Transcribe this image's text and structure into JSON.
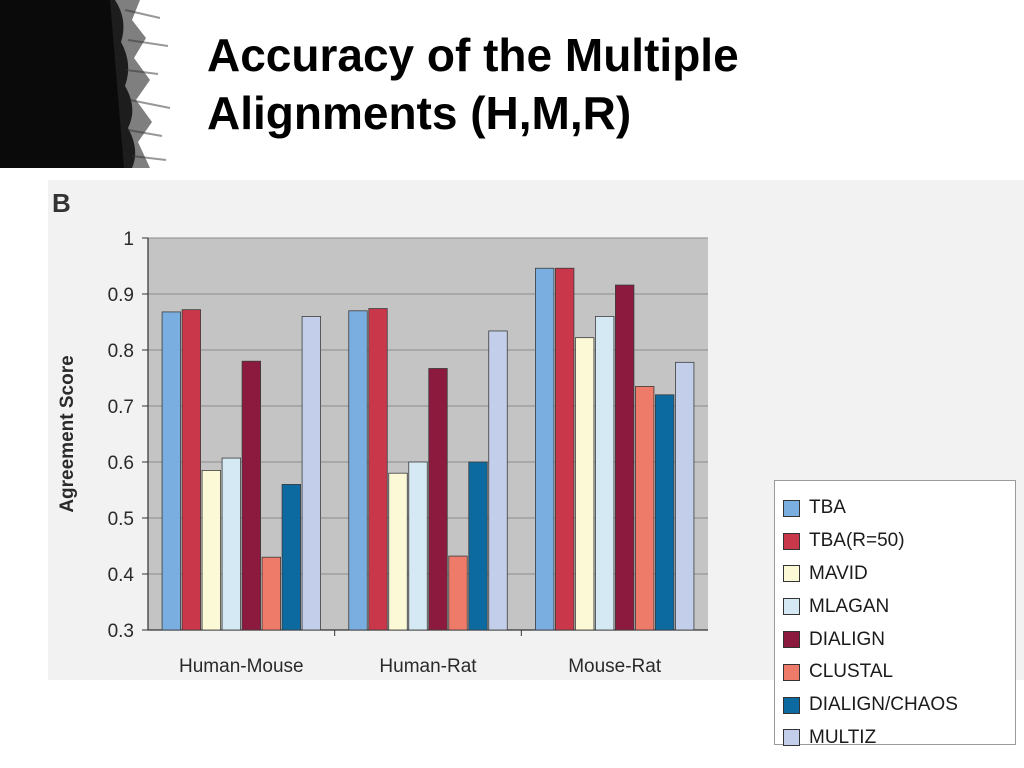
{
  "slide": {
    "title_line1": "Accuracy of the Multiple",
    "title_line2": "Alignments (H,M,R)"
  },
  "chart_data": {
    "type": "bar",
    "panel_label": "B",
    "title": "",
    "xlabel": "",
    "ylabel": "Agreement Score",
    "ylim": [
      0.3,
      1.0
    ],
    "yticks": [
      0.3,
      0.4,
      0.5,
      0.6,
      0.7,
      0.8,
      0.9,
      1
    ],
    "ytick_labels": [
      "0.3",
      "0.4",
      "0.5",
      "0.6",
      "0.7",
      "0.8",
      "0.9",
      "1"
    ],
    "grid": true,
    "legend_position": "right",
    "categories": [
      "Human-Mouse",
      "Human-Rat",
      "Mouse-Rat"
    ],
    "series": [
      {
        "name": "TBA",
        "color": "#7aaee0",
        "values": [
          0.868,
          0.87,
          0.946
        ]
      },
      {
        "name": "TBA(R=50)",
        "color": "#c8384a",
        "values": [
          0.872,
          0.874,
          0.946
        ]
      },
      {
        "name": "MAVID",
        "color": "#fbf9d6",
        "values": [
          0.585,
          0.58,
          0.822
        ]
      },
      {
        "name": "MLAGAN",
        "color": "#d4e9f4",
        "values": [
          0.607,
          0.6,
          0.86
        ]
      },
      {
        "name": "DIALIGN",
        "color": "#8b1a3e",
        "values": [
          0.78,
          0.767,
          0.916
        ]
      },
      {
        "name": "CLUSTAL",
        "color": "#ee7a6a",
        "values": [
          0.43,
          0.432,
          0.735
        ]
      },
      {
        "name": "DIALIGN/CHAOS",
        "color": "#0c6aa0",
        "values": [
          0.56,
          0.6,
          0.72
        ]
      },
      {
        "name": "MULTIZ",
        "color": "#c3cfea",
        "values": [
          0.86,
          0.834,
          0.778
        ]
      }
    ]
  }
}
